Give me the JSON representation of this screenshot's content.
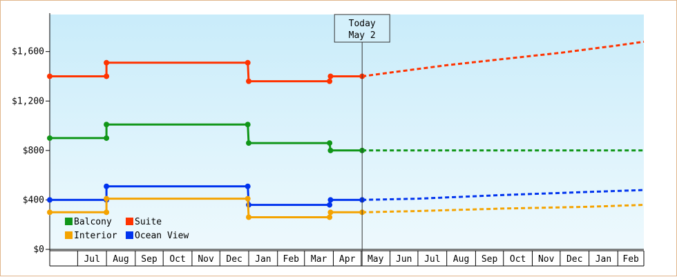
{
  "chart_data": {
    "type": "line",
    "step": true,
    "title": "",
    "xlabel": "",
    "ylabel": "",
    "ylim": [
      0,
      1900
    ],
    "yticks": [
      0,
      400,
      800,
      1200,
      1600
    ],
    "ytick_labels": [
      "$0",
      "$400",
      "$800",
      "$1,200",
      "$1,600"
    ],
    "x_axis": {
      "start": "2023-06-01",
      "end": "2025-03-01",
      "month_labels": [
        "Jul",
        "Aug",
        "Sep",
        "Oct",
        "Nov",
        "Dec",
        "Jan",
        "Feb",
        "Mar",
        "Apr",
        "May",
        "Jun",
        "Jul",
        "Aug",
        "Sep",
        "Oct",
        "Nov",
        "Dec",
        "Jan",
        "Feb"
      ]
    },
    "today": {
      "date": "2024-05-02",
      "label_line1": "Today",
      "label_line2": "May 2"
    },
    "legend": {
      "position": "bottom-left"
    },
    "background": {
      "top_color": "#c9ecfa",
      "bottom_color": "#eef9fd"
    },
    "series": [
      {
        "name": "Suite",
        "color": "#ff3300",
        "history": [
          [
            "2023-06-01",
            1400
          ],
          [
            "2023-08-01",
            1400
          ],
          [
            "2023-08-01",
            1510
          ],
          [
            "2023-12-31",
            1510
          ],
          [
            "2024-01-01",
            1360
          ],
          [
            "2024-03-28",
            1360
          ],
          [
            "2024-03-29",
            1400
          ],
          [
            "2024-05-02",
            1400
          ]
        ],
        "forecast": [
          [
            "2024-05-02",
            1400
          ],
          [
            "2024-06-01",
            1430
          ],
          [
            "2024-08-01",
            1490
          ],
          [
            "2024-10-01",
            1540
          ],
          [
            "2024-12-01",
            1590
          ],
          [
            "2025-02-01",
            1650
          ],
          [
            "2025-03-01",
            1680
          ]
        ]
      },
      {
        "name": "Balcony",
        "color": "#109618",
        "history": [
          [
            "2023-06-01",
            900
          ],
          [
            "2023-08-01",
            900
          ],
          [
            "2023-08-01",
            1010
          ],
          [
            "2023-12-31",
            1010
          ],
          [
            "2024-01-01",
            860
          ],
          [
            "2024-03-28",
            860
          ],
          [
            "2024-03-29",
            800
          ],
          [
            "2024-05-02",
            800
          ]
        ],
        "forecast": [
          [
            "2024-05-02",
            800
          ],
          [
            "2025-03-01",
            800
          ]
        ]
      },
      {
        "name": "Ocean View",
        "color": "#0033ee",
        "history": [
          [
            "2023-06-01",
            400
          ],
          [
            "2023-08-01",
            400
          ],
          [
            "2023-08-01",
            510
          ],
          [
            "2023-12-31",
            510
          ],
          [
            "2024-01-01",
            360
          ],
          [
            "2024-03-28",
            360
          ],
          [
            "2024-03-29",
            400
          ],
          [
            "2024-05-02",
            400
          ]
        ],
        "forecast": [
          [
            "2024-05-02",
            400
          ],
          [
            "2024-07-01",
            410
          ],
          [
            "2024-10-01",
            440
          ],
          [
            "2025-01-01",
            465
          ],
          [
            "2025-03-01",
            480
          ]
        ]
      },
      {
        "name": "Interior",
        "color": "#f4a300",
        "history": [
          [
            "2023-06-01",
            300
          ],
          [
            "2023-08-01",
            300
          ],
          [
            "2023-08-01",
            410
          ],
          [
            "2023-12-31",
            410
          ],
          [
            "2024-01-01",
            260
          ],
          [
            "2024-03-28",
            260
          ],
          [
            "2024-03-29",
            300
          ],
          [
            "2024-05-02",
            300
          ]
        ],
        "forecast": [
          [
            "2024-05-02",
            300
          ],
          [
            "2024-07-01",
            310
          ],
          [
            "2024-10-01",
            330
          ],
          [
            "2025-01-01",
            345
          ],
          [
            "2025-03-01",
            360
          ]
        ]
      }
    ],
    "legend_order": [
      "Balcony",
      "Suite",
      "Interior",
      "Ocean View"
    ]
  }
}
